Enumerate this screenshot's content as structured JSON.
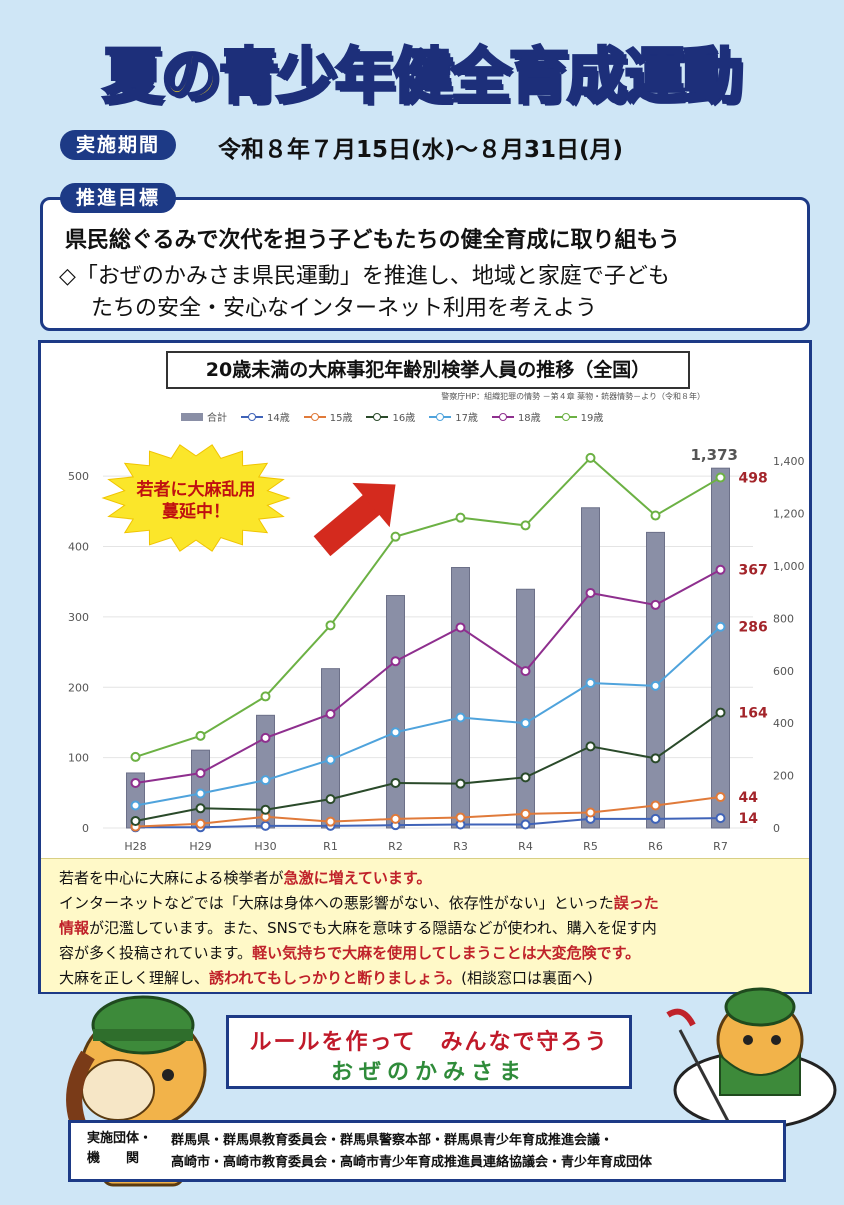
{
  "header": {
    "title": "夏の青少年健全育成運動"
  },
  "period": {
    "label": "実施期間",
    "text": "令和８年７月15日(水)～８月31日(月)"
  },
  "goal": {
    "label": "推進目標",
    "line1": "県民総ぐるみで次代を担う子どもたちの健全育成に取り組もう",
    "line2": "◇「おぜのかみさま県民運動」を推進し、地域と家庭で子ども",
    "line3": "たちの安全・安心なインターネット利用を考えよう"
  },
  "chart_data": {
    "type": "bar",
    "title": "20歳未満の大麻事犯年齢別検挙人員の推移（全国）",
    "source": "警察庁HP：組織犯罪の情勢 －第４章 薬物・銃器情勢－より（令和８年）",
    "categories": [
      "H28",
      "H29",
      "H30",
      "R1",
      "R2",
      "R3",
      "R4",
      "R5",
      "R6",
      "R7"
    ],
    "left_axis": {
      "ticks": [
        0,
        100,
        200,
        300,
        400,
        500
      ],
      "ylim": [
        0,
        540
      ]
    },
    "right_axis": {
      "ticks": [
        "0",
        "200",
        "400",
        "600",
        "800",
        "1,000",
        "1,200",
        "1,400"
      ],
      "ylim": [
        0,
        1450
      ]
    },
    "bars": {
      "name": "合計",
      "axis": "right",
      "color": "#8a8fa6",
      "values": [
        210,
        297,
        430,
        608,
        887,
        994,
        911,
        1222,
        1128,
        1373
      ]
    },
    "series": [
      {
        "name": "14歳",
        "color": "#3f63b8",
        "values": [
          1,
          1,
          3,
          3,
          4,
          5,
          5,
          13,
          13,
          14
        ]
      },
      {
        "name": "15歳",
        "color": "#e07a3a",
        "values": [
          2,
          6,
          16,
          9,
          13,
          15,
          20,
          22,
          32,
          44
        ]
      },
      {
        "name": "16歳",
        "color": "#2a4a2a",
        "values": [
          10,
          28,
          26,
          41,
          64,
          63,
          72,
          116,
          99,
          164
        ]
      },
      {
        "name": "17歳",
        "color": "#4fa3dc",
        "values": [
          32,
          49,
          68,
          97,
          136,
          157,
          149,
          206,
          202,
          286
        ]
      },
      {
        "name": "18歳",
        "color": "#8e2f8e",
        "values": [
          64,
          78,
          128,
          162,
          237,
          285,
          223,
          334,
          317,
          367
        ]
      },
      {
        "name": "19歳",
        "color": "#6cb144",
        "values": [
          101,
          131,
          187,
          288,
          414,
          441,
          430,
          526,
          444,
          498
        ]
      }
    ],
    "end_labels": {
      "total": "1,373",
      "19歳": "498",
      "18歳": "367",
      "17歳": "286",
      "16歳": "164",
      "15歳": "44",
      "14歳": "14"
    },
    "callout": {
      "line1": "若者に大麻乱用",
      "line2": "蔓延中！"
    }
  },
  "note": {
    "l1a": "若者を中心に大麻による検挙者が",
    "l1b": "急激に増えています。",
    "l2a": "インターネットなどでは「大麻は身体への悪影響がない、依存性がない」といった",
    "l2b": "誤った",
    "l3a": "情報",
    "l3b": "が氾濫しています。また、SNSでも大麻を意味する隠語などが使われ、購入を促す内",
    "l4a": "容が多く投稿されています。",
    "l4b": "軽い気持ちで大麻を使用してしまうことは大変危険です。",
    "l5a": "大麻を正しく理解し、",
    "l5b": "誘われてもしっかりと断りましょう。",
    "l5c": "(相談窓口は裏面へ)"
  },
  "slogan": {
    "line1": "ルールを作って　みんなで守ろう",
    "line2": "おぜのかみさま"
  },
  "orgs": {
    "label1": "実施団体・",
    "label2": "機　　関",
    "line1": "群馬県・群馬県教育委員会・群馬県警察本部・群馬県青少年育成推進会議・",
    "line2": "高崎市・高崎市教育委員会・高崎市青少年育成推進員連絡協議会・青少年育成団体"
  },
  "colors": {
    "navy": "#1d3a86",
    "title_yellow": "#f3d21c",
    "alert_red": "#c0222a"
  }
}
